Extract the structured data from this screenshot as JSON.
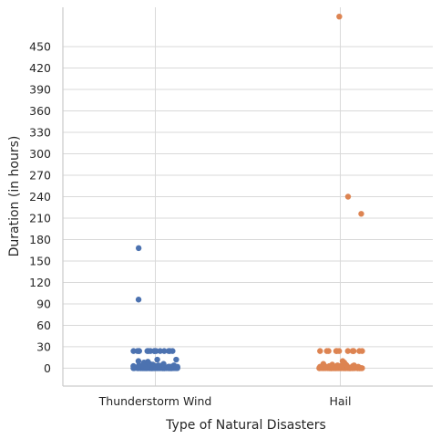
{
  "chart_data": {
    "type": "scatter",
    "subtype": "strip",
    "xlabel": "Type of Natural Disasters",
    "ylabel": "Duration (in hours)",
    "categories": [
      "Thunderstorm Wind",
      "Hail"
    ],
    "yticks": [
      0,
      30,
      60,
      90,
      120,
      150,
      180,
      210,
      240,
      270,
      300,
      330,
      360,
      390,
      420,
      450
    ],
    "ylim": [
      -25,
      505
    ],
    "grid": true,
    "colors": {
      "Thunderstorm Wind": "#4c72b0",
      "Hail": "#dd8452"
    },
    "series": [
      {
        "category": "Thunderstorm Wind",
        "values": [
          0,
          0,
          0,
          0,
          0,
          0,
          0,
          0,
          0,
          0,
          0,
          0,
          0,
          0,
          0,
          0,
          0,
          0,
          0,
          0,
          0,
          0,
          0,
          0,
          0,
          0,
          0,
          0,
          0,
          0,
          0,
          0,
          0,
          0,
          0,
          0,
          0,
          0,
          0,
          0,
          0,
          0,
          0,
          0,
          0,
          0,
          0,
          0,
          0,
          0,
          0,
          0,
          0,
          0,
          0,
          0,
          0,
          0,
          0,
          0,
          0,
          0,
          0,
          0,
          0,
          0,
          0,
          0,
          0,
          0,
          0,
          0,
          0,
          0,
          0,
          0,
          0,
          0,
          0,
          0,
          1,
          1,
          1,
          1,
          1,
          1,
          1,
          1,
          1,
          1,
          1,
          1,
          1,
          1,
          1,
          1,
          1,
          1,
          1,
          1,
          1,
          1,
          1,
          1,
          1,
          1,
          1,
          1,
          1,
          1,
          2,
          2,
          2,
          2,
          2,
          2,
          2,
          2,
          2,
          2,
          2,
          2,
          3,
          3,
          3,
          3,
          3,
          3,
          3,
          3,
          4,
          4,
          4,
          4,
          4,
          4,
          5,
          5,
          5,
          6,
          6,
          6,
          8,
          9,
          10,
          12,
          12,
          24,
          24,
          24,
          24,
          24,
          24,
          24,
          24,
          24,
          24,
          24,
          24,
          24,
          24,
          24,
          96,
          168
        ]
      },
      {
        "category": "Hail",
        "values": [
          0,
          0,
          0,
          0,
          0,
          0,
          0,
          0,
          0,
          0,
          0,
          0,
          0,
          0,
          0,
          0,
          0,
          0,
          0,
          0,
          0,
          0,
          0,
          0,
          0,
          0,
          0,
          0,
          0,
          0,
          0,
          0,
          0,
          0,
          0,
          0,
          0,
          0,
          0,
          0,
          0,
          0,
          0,
          0,
          0,
          0,
          0,
          0,
          0,
          0,
          0,
          0,
          0,
          0,
          0,
          0,
          0,
          0,
          0,
          0,
          0,
          0,
          0,
          0,
          0,
          0,
          0,
          0,
          0,
          0,
          0,
          0,
          0,
          0,
          0,
          0,
          0,
          0,
          0,
          0,
          1,
          1,
          1,
          1,
          1,
          1,
          1,
          1,
          1,
          1,
          1,
          1,
          1,
          1,
          1,
          1,
          1,
          1,
          1,
          1,
          2,
          2,
          2,
          2,
          2,
          2,
          2,
          2,
          2,
          2,
          3,
          3,
          3,
          3,
          3,
          4,
          4,
          4,
          4,
          5,
          5,
          6,
          8,
          10,
          24,
          24,
          24,
          24,
          24,
          24,
          24,
          24,
          24,
          24,
          24,
          24,
          216,
          240,
          492
        ]
      }
    ]
  }
}
